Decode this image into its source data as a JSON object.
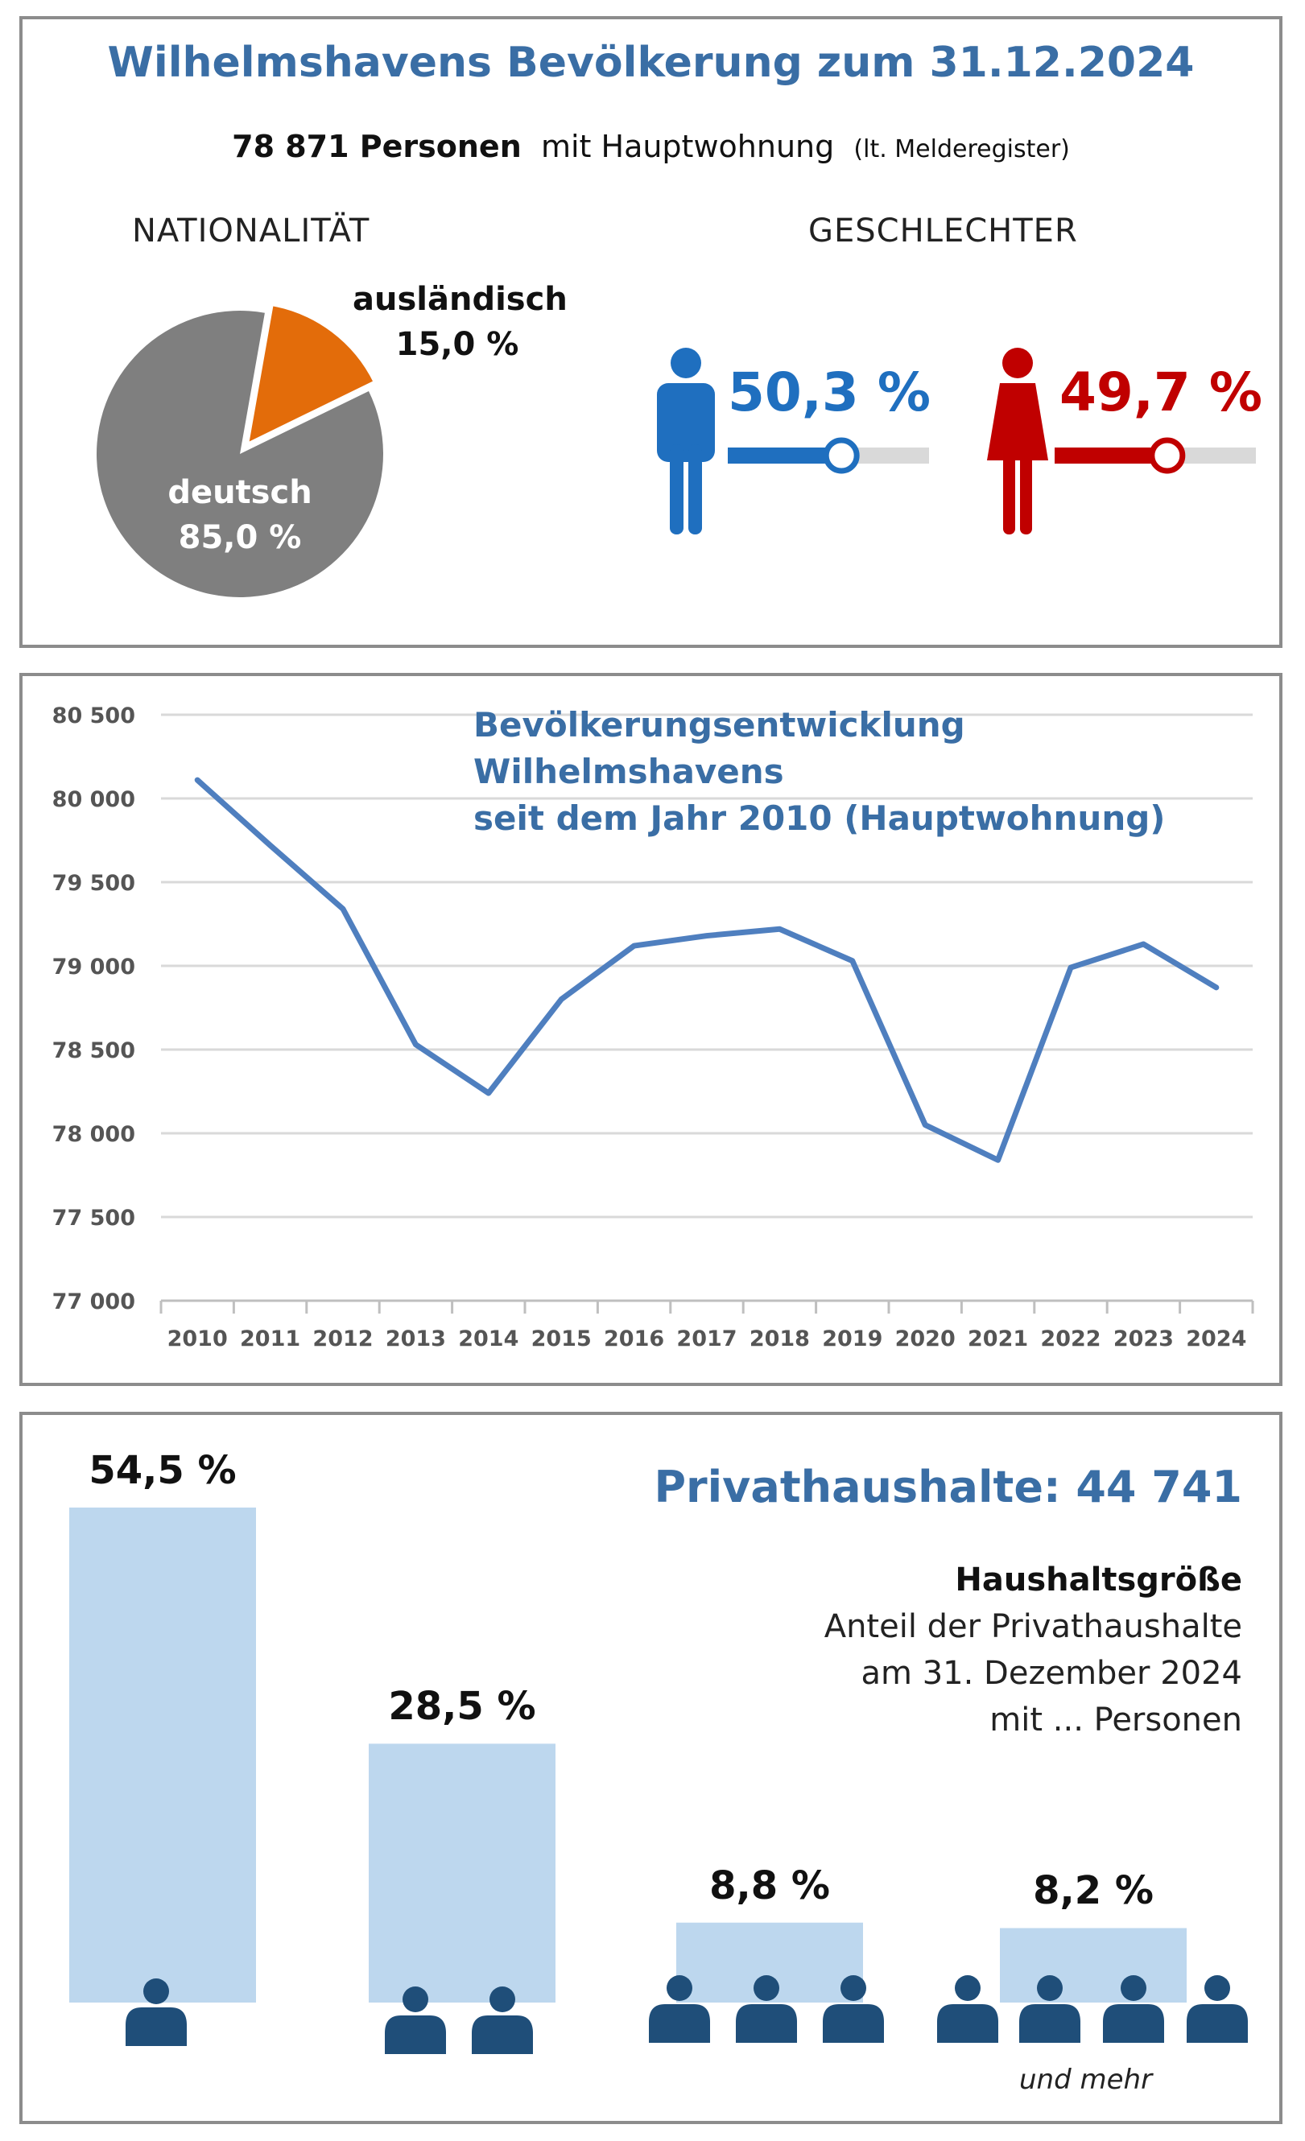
{
  "header": {
    "title": "Wilhelmshavens Bevölkerung zum 31.12.2024",
    "persons": "78 871 Personen",
    "persons_suffix": "mit Hauptwohnung",
    "source_note": "(lt. Melderegister)"
  },
  "nationality": {
    "label": "NATIONALITÄT",
    "slices": [
      {
        "name": "deutsch",
        "value_label": "85,0 %",
        "value": 85.0,
        "color": "#7f7f7f"
      },
      {
        "name": "ausländisch",
        "value_label": "15,0 %",
        "value": 15.0,
        "color": "#e36c0a"
      }
    ]
  },
  "gender": {
    "label": "GESCHLECHTER",
    "male": {
      "value_label": "50,3 %",
      "value": 50.3,
      "color": "#1f6fbf"
    },
    "female": {
      "value_label": "49,7 %",
      "value": 49.7,
      "color": "#c00000"
    }
  },
  "chart_data": [
    {
      "type": "line",
      "title": "Bevölkerungsentwicklung Wilhelmshavens",
      "subtitle": "seit dem Jahr 2010  (Hauptwohnung)",
      "x": [
        "2010",
        "2011",
        "2012",
        "2013",
        "2014",
        "2015",
        "2016",
        "2017",
        "2018",
        "2019",
        "2020",
        "2021",
        "2022",
        "2023",
        "2024"
      ],
      "series": [
        {
          "values": [
            80110,
            79720,
            79340,
            78530,
            78240,
            78800,
            79120,
            79180,
            79220,
            79030,
            78050,
            77840,
            78990,
            79130,
            78871
          ],
          "color": "#4f7fbf"
        }
      ],
      "ylim": [
        77000,
        80500
      ],
      "yticks": [
        77000,
        77500,
        78000,
        78500,
        79000,
        79500,
        80000,
        80500
      ],
      "ytick_labels": [
        "77 000",
        "77 500",
        "78 000",
        "78 500",
        "79 000",
        "79 500",
        "80 000",
        "80 500"
      ],
      "grid": true
    },
    {
      "type": "bar",
      "title": "Privathaushalte:  44 741",
      "categories": [
        "1",
        "2",
        "3",
        "4"
      ],
      "values": [
        54.5,
        28.5,
        8.8,
        8.2
      ],
      "value_labels": [
        "54,5 %",
        "28,5 %",
        "8,8 %",
        "8,2 %"
      ],
      "color": "#bdd7ee"
    }
  ],
  "households": {
    "subtitle_bold": "Haushaltsgröße",
    "line1": "Anteil der Privathaushalte",
    "line2": "am 31. Dezember 2024",
    "line3": "mit ... Personen",
    "and_more": "und mehr",
    "icon_color": "#1f4e79"
  }
}
